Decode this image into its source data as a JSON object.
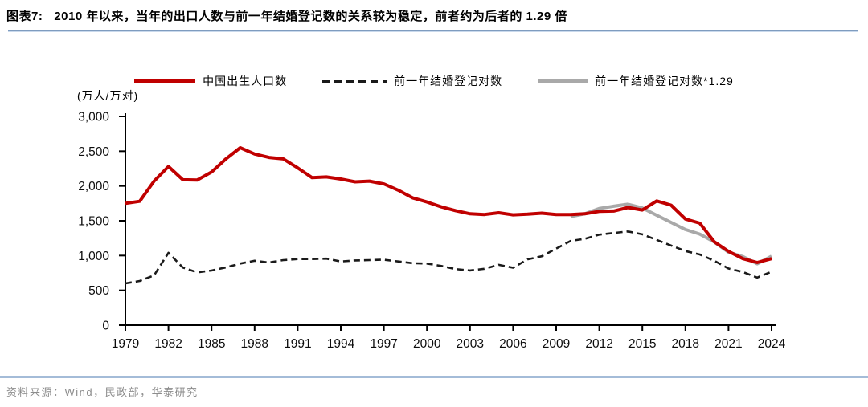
{
  "header": {
    "figure_label": "图表7:",
    "title": "2010 年以来，当年的出口人数与前一年结婚登记数的关系较为稳定，前者约为后者的 1.29 倍"
  },
  "footer": {
    "source": "资料来源：Wind，民政部，华泰研究"
  },
  "colors": {
    "birth_line_red": "#c00000",
    "marriage_dashed_black": "#1a1a1a",
    "marriage_x129_gray": "#a9a9a9",
    "title_rule_light_blue": "#c9d9ec",
    "title_rule_dark_blue": "#7f9cbf",
    "footer_rule_blue": "#a4bcd8",
    "source_text_gray": "#8c8c8c"
  },
  "chart_data": {
    "type": "line",
    "title": "",
    "unit_label": "(万人/万对)",
    "xlabel": "",
    "ylabel": "(万人/万对)",
    "ylim": [
      0,
      3000
    ],
    "grid": false,
    "legend_position": "top",
    "x": [
      1979,
      1980,
      1981,
      1982,
      1983,
      1984,
      1985,
      1986,
      1987,
      1988,
      1989,
      1990,
      1991,
      1992,
      1993,
      1994,
      1995,
      1996,
      1997,
      1998,
      1999,
      2000,
      2001,
      2002,
      2003,
      2004,
      2005,
      2006,
      2007,
      2008,
      2009,
      2010,
      2011,
      2012,
      2013,
      2014,
      2015,
      2016,
      2017,
      2018,
      2019,
      2020,
      2021,
      2022,
      2023,
      2024
    ],
    "series": [
      {
        "name": "中国出生人口数",
        "color": "#c00000",
        "style": "solid",
        "values": [
          1750,
          1780,
          2070,
          2280,
          2090,
          2085,
          2200,
          2390,
          2550,
          2460,
          2410,
          2390,
          2260,
          2120,
          2130,
          2100,
          2060,
          2070,
          2030,
          1940,
          1830,
          1770,
          1700,
          1645,
          1600,
          1590,
          1615,
          1585,
          1595,
          1610,
          1590,
          1590,
          1600,
          1635,
          1640,
          1690,
          1655,
          1785,
          1725,
          1525,
          1465,
          1200,
          1060,
          955,
          900,
          955
        ]
      },
      {
        "name": "前一年结婚登记对数",
        "color": "#1a1a1a",
        "style": "dashed",
        "values": [
          600,
          635,
          715,
          1040,
          827,
          758,
          785,
          830,
          885,
          925,
          900,
          935,
          950,
          950,
          955,
          915,
          930,
          935,
          940,
          915,
          890,
          885,
          850,
          805,
          786,
          810,
          867,
          825,
          945,
          990,
          1100,
          1210,
          1240,
          1300,
          1325,
          1347,
          1305,
          1225,
          1145,
          1065,
          1015,
          927,
          813,
          764,
          683,
          768
        ]
      },
      {
        "name": "前一年结婚登记对数*1.29",
        "color": "#a9a9a9",
        "style": "solid",
        "values": [
          null,
          null,
          null,
          null,
          null,
          null,
          null,
          null,
          null,
          null,
          null,
          null,
          null,
          null,
          null,
          null,
          null,
          null,
          null,
          null,
          null,
          null,
          null,
          null,
          null,
          null,
          null,
          null,
          null,
          null,
          null,
          1560,
          1600,
          1677,
          1709,
          1738,
          1683,
          1580,
          1477,
          1374,
          1309,
          1196,
          1049,
          985,
          881,
          991
        ]
      }
    ],
    "yticks": [
      0,
      500,
      1000,
      1500,
      2000,
      2500,
      3000
    ],
    "ytick_labels": [
      "0",
      "500",
      "1,000",
      "1,500",
      "2,000",
      "2,500",
      "3,000"
    ],
    "xticks": [
      1979,
      1982,
      1985,
      1988,
      1991,
      1994,
      1997,
      2000,
      2003,
      2006,
      2009,
      2012,
      2015,
      2018,
      2021,
      2024
    ],
    "xtick_labels": [
      "1979",
      "1982",
      "1985",
      "1988",
      "1991",
      "1994",
      "1997",
      "2000",
      "2003",
      "2006",
      "2009",
      "2012",
      "2015",
      "2018",
      "2021",
      "2024"
    ]
  }
}
